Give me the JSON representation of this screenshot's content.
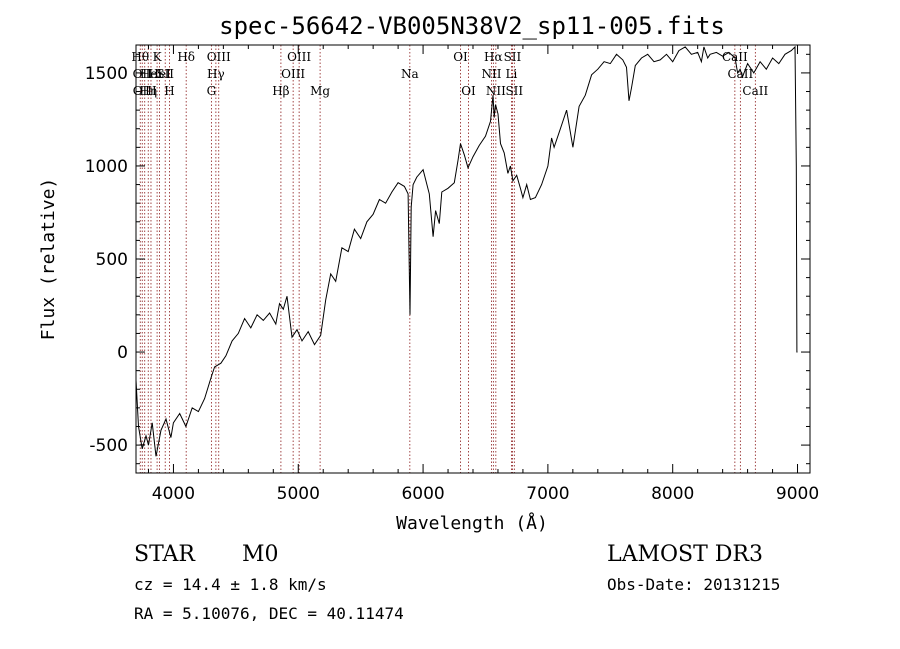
{
  "chart_data": {
    "type": "line",
    "title": "spec-56642-VB005N38V2_sp11-005.fits",
    "xlabel": "Wavelength (Å)",
    "ylabel": "Flux (relative)",
    "xlim": [
      3700,
      9100
    ],
    "ylim": [
      -650,
      1650
    ],
    "x_ticks": [
      4000,
      5000,
      6000,
      7000,
      8000,
      9000
    ],
    "y_ticks": [
      -500,
      0,
      500,
      1000,
      1500
    ],
    "grid": false,
    "line_color": "#000000",
    "marker_color": "#8b1a1a",
    "series": [
      {
        "x": [
          3700,
          3720,
          3750,
          3780,
          3800,
          3830,
          3860,
          3900,
          3940,
          3980,
          4000,
          4050,
          4100,
          4150,
          4200,
          4250,
          4300,
          4330,
          4380,
          4420,
          4470,
          4520,
          4570,
          4620,
          4670,
          4720,
          4770,
          4820,
          4850,
          4880,
          4910,
          4950,
          4990,
          5030,
          5080,
          5130,
          5180,
          5220,
          5260,
          5300,
          5350,
          5400,
          5450,
          5500,
          5550,
          5600,
          5650,
          5700,
          5750,
          5800,
          5850,
          5880,
          5895,
          5905,
          5920,
          5950,
          6000,
          6050,
          6080,
          6100,
          6130,
          6150,
          6200,
          6250,
          6280,
          6300,
          6330,
          6360,
          6400,
          6450,
          6500,
          6540,
          6560,
          6570,
          6580,
          6600,
          6620,
          6650,
          6680,
          6700,
          6720,
          6750,
          6780,
          6800,
          6830,
          6860,
          6900,
          6950,
          7000,
          7030,
          7050,
          7100,
          7150,
          7200,
          7250,
          7300,
          7350,
          7400,
          7450,
          7500,
          7550,
          7600,
          7630,
          7650,
          7670,
          7700,
          7750,
          7800,
          7850,
          7900,
          7950,
          8000,
          8050,
          8100,
          8150,
          8200,
          8230,
          8250,
          8280,
          8300,
          8350,
          8400,
          8450,
          8500,
          8520,
          8540,
          8560,
          8600,
          8650,
          8700,
          8750,
          8800,
          8850,
          8900,
          8950,
          8980,
          8990,
          8995,
          9000
        ],
        "y": [
          -150,
          -400,
          -520,
          -450,
          -500,
          -380,
          -560,
          -420,
          -360,
          -460,
          -380,
          -330,
          -400,
          -300,
          -320,
          -250,
          -140,
          -80,
          -60,
          -20,
          60,
          100,
          180,
          130,
          200,
          170,
          210,
          150,
          260,
          230,
          300,
          80,
          120,
          60,
          110,
          40,
          90,
          280,
          420,
          380,
          560,
          540,
          660,
          610,
          700,
          740,
          820,
          800,
          860,
          910,
          890,
          850,
          200,
          780,
          900,
          940,
          980,
          850,
          620,
          760,
          690,
          860,
          880,
          910,
          1030,
          1120,
          1060,
          990,
          1050,
          1110,
          1160,
          1240,
          1380,
          1260,
          1330,
          1280,
          1120,
          1070,
          960,
          1000,
          920,
          950,
          880,
          830,
          900,
          820,
          830,
          900,
          1000,
          1150,
          1100,
          1200,
          1300,
          1100,
          1320,
          1380,
          1490,
          1520,
          1560,
          1550,
          1600,
          1570,
          1530,
          1350,
          1420,
          1540,
          1580,
          1600,
          1560,
          1570,
          1600,
          1560,
          1620,
          1640,
          1600,
          1610,
          1560,
          1640,
          1580,
          1600,
          1610,
          1590,
          1610,
          1580,
          1500,
          1520,
          1480,
          1550,
          1500,
          1560,
          1520,
          1580,
          1550,
          1600,
          1620,
          1640,
          1000,
          0,
          0
        ]
      }
    ],
    "line_markers": [
      {
        "wave": 3734,
        "label": "Hθ",
        "row": 0
      },
      {
        "wave": 3750,
        "label": "OII",
        "row": 1
      },
      {
        "wave": 3770,
        "label": "OIII",
        "row": 2
      },
      {
        "wave": 3798,
        "label": "Hη",
        "row": 2
      },
      {
        "wave": 3820,
        "label": "HeI",
        "row": 1
      },
      {
        "wave": 3869,
        "label": "K",
        "row": 0
      },
      {
        "wave": 3889,
        "label": "HeI",
        "row": 1
      },
      {
        "wave": 3934,
        "label": "SII",
        "row": 1
      },
      {
        "wave": 3968,
        "label": "H",
        "row": 2
      },
      {
        "wave": 4102,
        "label": "Hδ",
        "row": 0
      },
      {
        "wave": 4304,
        "label": "G",
        "row": 2
      },
      {
        "wave": 4340,
        "label": "Hγ",
        "row": 1
      },
      {
        "wave": 4363,
        "label": "OIII",
        "row": 0
      },
      {
        "wave": 4861,
        "label": "Hβ",
        "row": 2
      },
      {
        "wave": 4959,
        "label": "OIII",
        "row": 1
      },
      {
        "wave": 5007,
        "label": "OIII",
        "row": 0
      },
      {
        "wave": 5175,
        "label": "Mg",
        "row": 2
      },
      {
        "wave": 5894,
        "label": "Na",
        "row": 1
      },
      {
        "wave": 6300,
        "label": "OI",
        "row": 0
      },
      {
        "wave": 6364,
        "label": "OI",
        "row": 2
      },
      {
        "wave": 6548,
        "label": "NII",
        "row": 1
      },
      {
        "wave": 6563,
        "label": "Hα",
        "row": 0
      },
      {
        "wave": 6583,
        "label": "NII",
        "row": 2
      },
      {
        "wave": 6708,
        "label": "Li",
        "row": 1
      },
      {
        "wave": 6716,
        "label": "SII",
        "row": 0
      },
      {
        "wave": 6731,
        "label": "SII",
        "row": 2
      },
      {
        "wave": 8498,
        "label": "CaII",
        "row": 0
      },
      {
        "wave": 8542,
        "label": "CaII",
        "row": 1
      },
      {
        "wave": 8662,
        "label": "CaII",
        "row": 2
      }
    ]
  },
  "info": {
    "object_type": "STAR",
    "subclass": "M0",
    "survey": "LAMOST DR3",
    "cz": "cz = 14.4 ± 1.8 km/s",
    "obs_date": "Obs-Date: 20131215",
    "radec": "RA =   5.10076, DEC =  40.11474"
  }
}
